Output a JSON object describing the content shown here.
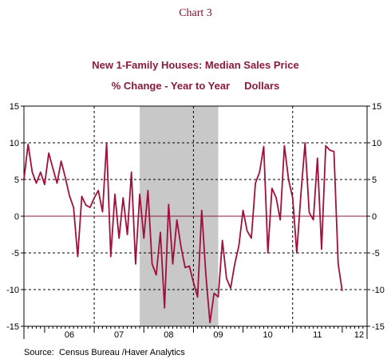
{
  "header": {
    "chart_number": "Chart 3"
  },
  "footer": {
    "source": "Source:  Census Bureau /Haver Analytics"
  },
  "chart_data": {
    "type": "line",
    "title": "New 1-Family Houses: Median Sales Price",
    "subtitle": "% Change - Year to Year     Dollars",
    "ylim": [
      -15,
      15
    ],
    "yticks": [
      15,
      10,
      5,
      0,
      -5,
      -10,
      -15
    ],
    "xlim": [
      2005.583,
      2012.5
    ],
    "x_tick_labels": [
      "06",
      "07",
      "08",
      "09",
      "10",
      "11",
      "12"
    ],
    "x_tick_centers": [
      2006.5,
      2007.5,
      2008.5,
      2009.5,
      2010.5,
      2011.5,
      2012.5
    ],
    "x_year_boundaries": [
      2006,
      2007,
      2008,
      2009,
      2010,
      2011,
      2012
    ],
    "dashed_grid_years": [
      2007,
      2009,
      2011
    ],
    "dashed_grid_values": [
      10,
      5,
      -5,
      -10
    ],
    "zero_line": true,
    "recession_shading": [
      2007.917,
      2009.5
    ],
    "colors": {
      "series": "#a0103a",
      "zero_line": "#8b1a3a",
      "recession": "#c8c8c8",
      "title": "#8b1a3a"
    },
    "series": [
      {
        "x": [
          2005.583,
          2005.667,
          2005.75,
          2005.833,
          2005.917,
          2006.0,
          2006.083,
          2006.167,
          2006.25,
          2006.333,
          2006.417,
          2006.5,
          2006.583,
          2006.667,
          2006.75,
          2006.833,
          2006.917,
          2007.0,
          2007.083,
          2007.167,
          2007.25,
          2007.333,
          2007.417,
          2007.5,
          2007.583,
          2007.667,
          2007.75,
          2007.833,
          2007.917,
          2008.0,
          2008.083,
          2008.167,
          2008.25,
          2008.333,
          2008.417,
          2008.5,
          2008.583,
          2008.667,
          2008.75,
          2008.833,
          2008.917,
          2009.0,
          2009.083,
          2009.167,
          2009.25,
          2009.333,
          2009.417,
          2009.5,
          2009.583,
          2009.667,
          2009.75,
          2009.833,
          2009.917,
          2010.0,
          2010.083,
          2010.167,
          2010.25,
          2010.333,
          2010.417,
          2010.5,
          2010.583,
          2010.667,
          2010.75,
          2010.833,
          2010.917,
          2011.0,
          2011.083,
          2011.167,
          2011.25,
          2011.333,
          2011.417,
          2011.5,
          2011.583,
          2011.667,
          2011.75,
          2011.833,
          2011.917,
          2012.0,
          2012.083,
          2012.167,
          2012.25,
          2012.333,
          2012.417
        ],
        "values": [
          5.0,
          9.8,
          6.0,
          4.5,
          6.0,
          4.3,
          8.6,
          6.5,
          4.5,
          7.5,
          5.3,
          2.8,
          1.2,
          -5.5,
          2.7,
          1.5,
          1.2,
          2.5,
          3.5,
          0.6,
          10.0,
          -5.5,
          3.0,
          -3.0,
          2.5,
          -2.5,
          6.0,
          -6.5,
          3.0,
          -3.0,
          3.5,
          -6.5,
          -8.0,
          -2.2,
          -12.5,
          1.6,
          -6.5,
          -0.5,
          -4.2,
          -7.0,
          -6.8,
          -9.0,
          -11.0,
          0.8,
          -8.0,
          -14.5,
          -10.5,
          -11.0,
          -3.3,
          -8.5,
          -9.8,
          -6.5,
          -4.0,
          0.8,
          -2.0,
          -3.0,
          4.5,
          6.0,
          9.5,
          -5.0,
          3.8,
          2.5,
          -0.5,
          9.6,
          5.0,
          2.5,
          -5.0,
          3.0,
          10.0,
          0.5,
          -0.5,
          7.9,
          -4.5,
          9.6,
          9.0,
          8.8,
          -6.5,
          -10.2,
          null,
          null,
          null,
          null,
          null
        ]
      }
    ]
  }
}
